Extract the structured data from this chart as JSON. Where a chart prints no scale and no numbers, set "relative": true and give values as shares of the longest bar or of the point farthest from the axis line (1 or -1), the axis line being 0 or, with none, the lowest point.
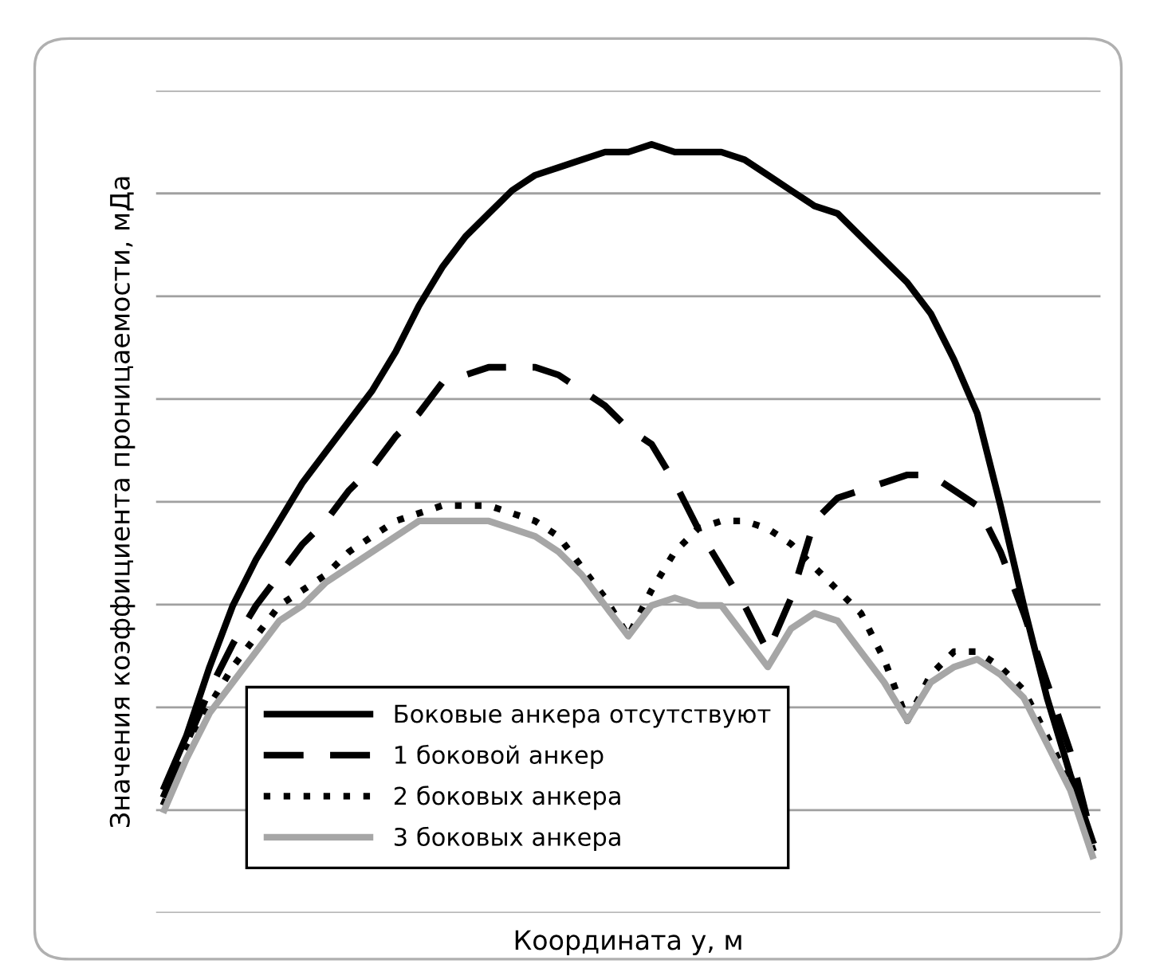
{
  "chart_data": {
    "type": "line",
    "relative": true,
    "xlabel": "Координата y, м",
    "ylabel": "Значения коэффициента проницаемости, мДа",
    "grid": "y",
    "legend": "bottom",
    "marker": "none",
    "categories": [
      null,
      null,
      null,
      null,
      null,
      null,
      null,
      null,
      null,
      null,
      null,
      null,
      null,
      null,
      null,
      null,
      null,
      null,
      null,
      null,
      null,
      null,
      null,
      null,
      null,
      null,
      null,
      null,
      null,
      null,
      null,
      null,
      null,
      null,
      null,
      null,
      null,
      null,
      null,
      null,
      null
    ],
    "series": [
      {
        "name": "Боковые анкера отсутствуют",
        "color": "#000000",
        "line_style": "solid",
        "values": [
          0.16,
          0.23,
          0.32,
          0.4,
          0.46,
          0.51,
          0.56,
          0.6,
          0.64,
          0.68,
          0.73,
          0.79,
          0.84,
          0.88,
          0.91,
          0.94,
          0.96,
          0.97,
          0.98,
          0.99,
          0.99,
          1.0,
          0.99,
          0.99,
          0.99,
          0.98,
          0.96,
          0.94,
          0.92,
          0.91,
          0.88,
          0.85,
          0.82,
          0.78,
          0.72,
          0.65,
          0.53,
          0.4,
          0.28,
          0.18,
          0.09
        ]
      },
      {
        "name": "1 боковой анкер",
        "color": "#000000",
        "line_style": "dashed",
        "values": [
          0.15,
          0.22,
          0.29,
          0.35,
          0.4,
          0.44,
          0.48,
          0.51,
          0.55,
          0.58,
          0.62,
          0.65,
          0.69,
          0.7,
          0.71,
          0.71,
          0.71,
          0.7,
          0.68,
          0.66,
          0.63,
          0.61,
          0.56,
          0.5,
          0.45,
          0.4,
          0.34,
          0.41,
          0.51,
          0.54,
          0.55,
          0.56,
          0.57,
          0.57,
          0.55,
          0.53,
          0.47,
          0.39,
          0.3,
          0.21,
          0.09
        ]
      },
      {
        "name": "2 боковых анкера",
        "color": "#000000",
        "line_style": "dotted",
        "values": [
          0.14,
          0.21,
          0.27,
          0.32,
          0.36,
          0.4,
          0.42,
          0.44,
          0.47,
          0.49,
          0.51,
          0.52,
          0.53,
          0.53,
          0.53,
          0.52,
          0.51,
          0.49,
          0.45,
          0.41,
          0.36,
          0.42,
          0.47,
          0.5,
          0.51,
          0.51,
          0.5,
          0.48,
          0.45,
          0.42,
          0.39,
          0.33,
          0.25,
          0.31,
          0.34,
          0.34,
          0.32,
          0.29,
          0.23,
          0.17,
          0.08
        ]
      },
      {
        "name": "3 боковых анкера",
        "color": "#a6a6a6",
        "line_style": "solid",
        "values": [
          0.13,
          0.2,
          0.26,
          0.3,
          0.34,
          0.38,
          0.4,
          0.43,
          0.45,
          0.47,
          0.49,
          0.51,
          0.51,
          0.51,
          0.51,
          0.5,
          0.49,
          0.47,
          0.44,
          0.4,
          0.36,
          0.4,
          0.41,
          0.4,
          0.4,
          0.36,
          0.32,
          0.37,
          0.39,
          0.38,
          0.34,
          0.3,
          0.25,
          0.3,
          0.32,
          0.33,
          0.31,
          0.28,
          0.22,
          0.16,
          0.07
        ]
      }
    ]
  }
}
